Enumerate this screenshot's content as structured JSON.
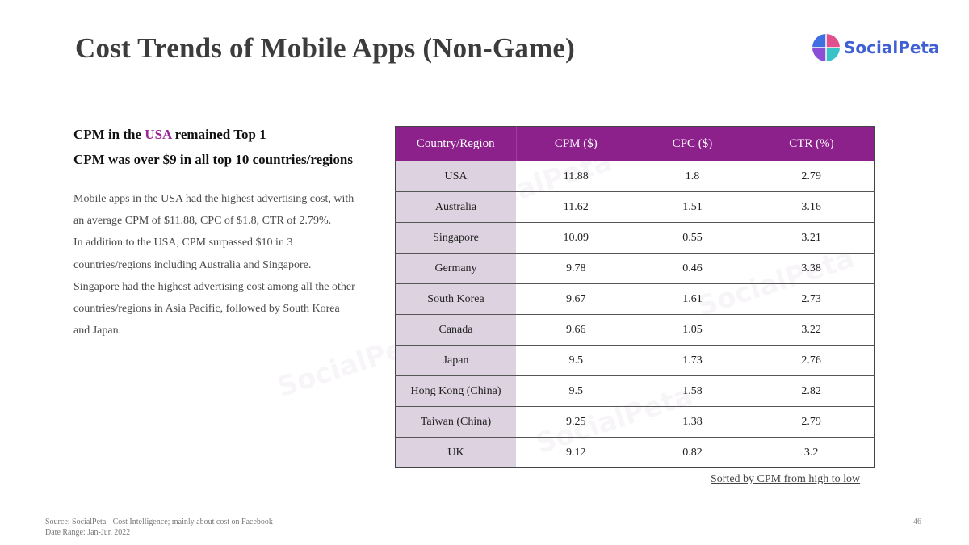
{
  "slide": {
    "title": "Cost Trends of Mobile Apps (Non-Game)",
    "page_number": "46"
  },
  "logo": {
    "text": "SocialPeta"
  },
  "headlines": {
    "line1_prefix": "CPM in the ",
    "line1_accent": "USA",
    "line1_suffix": " remained Top 1",
    "line2": "CPM was over $9 in all top 10 countries/regions"
  },
  "body": [
    "Mobile apps in the USA had the highest advertising cost, with an average CPM of $11.88, CPC of $1.8, CTR of 2.79%.",
    "In addition to the USA, CPM surpassed $10 in 3 countries/regions including Australia and Singapore. Singapore had the highest advertising cost among all the other countries/regions in Asia Pacific, followed by South Korea and Japan."
  ],
  "table": {
    "headers": [
      "Country/Region",
      "CPM ($)",
      "CPC ($)",
      "CTR (%)"
    ],
    "rows": [
      [
        "USA",
        "11.88",
        "1.8",
        "2.79"
      ],
      [
        "Australia",
        "11.62",
        "1.51",
        "3.16"
      ],
      [
        "Singapore",
        "10.09",
        "0.55",
        "3.21"
      ],
      [
        "Germany",
        "9.78",
        "0.46",
        "3.38"
      ],
      [
        "South Korea",
        "9.67",
        "1.61",
        "2.73"
      ],
      [
        "Canada",
        "9.66",
        "1.05",
        "3.22"
      ],
      [
        "Japan",
        "9.5",
        "1.73",
        "2.76"
      ],
      [
        "Hong Kong (China)",
        "9.5",
        "1.58",
        "2.82"
      ],
      [
        "Taiwan (China)",
        "9.25",
        "1.38",
        "2.79"
      ],
      [
        "UK",
        "9.12",
        "0.82",
        "3.2"
      ]
    ]
  },
  "sort_note": "Sorted by CPM from high to low",
  "source": {
    "line1": "Source: SocialPeta - Cost Intelligence; mainly about cost on Facebook",
    "line2": "Date Range: Jan-Jun 2022"
  },
  "colors": {
    "accent": "#8c218c",
    "country_column": "#ddd2e0",
    "logo_blue": "#3f5fd3"
  }
}
